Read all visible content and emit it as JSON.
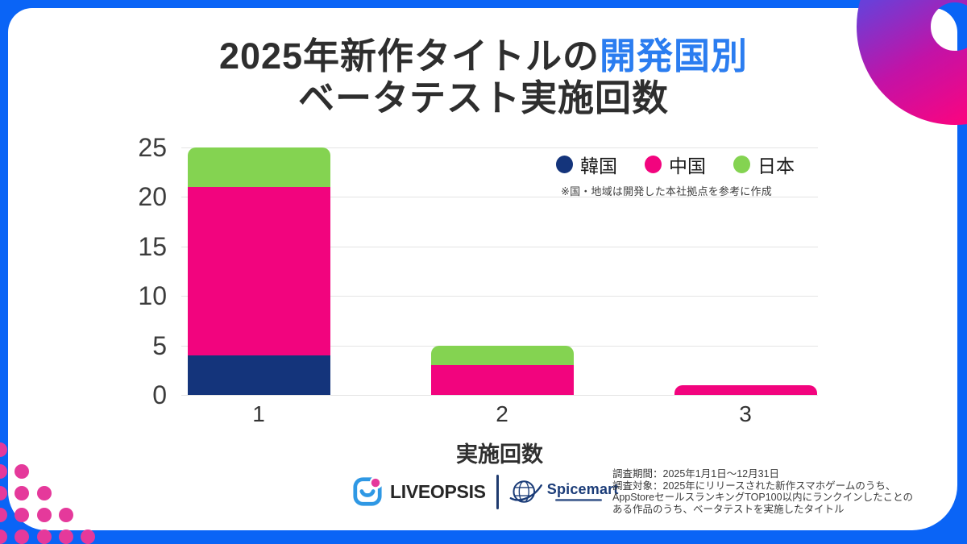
{
  "title": {
    "line1_prefix": "2025年新作タイトルの",
    "line1_highlight": "開発国別",
    "line2": "ベータテスト実施回数"
  },
  "chart_data": {
    "type": "bar",
    "stacked": true,
    "categories": [
      "1",
      "2",
      "3"
    ],
    "series": [
      {
        "name": "韓国",
        "color": "#14347B",
        "values": [
          4,
          0,
          0
        ]
      },
      {
        "name": "中国",
        "color": "#F2047E",
        "values": [
          17,
          3,
          1
        ]
      },
      {
        "name": "日本",
        "color": "#84D351",
        "values": [
          4,
          2,
          0
        ]
      }
    ],
    "totals": [
      25,
      5,
      1
    ],
    "xlabel": "実施回数",
    "ylim": [
      0,
      25
    ],
    "yticks": [
      0,
      5,
      10,
      15,
      20,
      25
    ],
    "grid": "horizontal",
    "legend_position": "top-right",
    "legend_note": "※国・地域は開発した本社拠点を参考に作成"
  },
  "footer": {
    "logo1_text": "LIVEOPSIS",
    "logo2_text": "Spicemart",
    "note_lines": [
      "調査期間：2025年1月1日～12月31日",
      "調査対象：2025年にリリースされた新作スマホゲームのうち、",
      "AppStoreセールスランキングTOP100以内にランクインしたことの",
      "ある作品のうち、ベータテストを実施したタイトル"
    ]
  },
  "colors": {
    "frame_blue": "#0A64F6",
    "title_highlight": "#2B7DF0",
    "korea_navy": "#14347B",
    "china_pink": "#F2047E",
    "japan_green": "#84D351",
    "decor_dot_pink": "#E5399B",
    "ring_gradient": [
      "#6A3FD8",
      "#C312A6",
      "#FA0480"
    ],
    "gridline": "#E4E4E4"
  }
}
